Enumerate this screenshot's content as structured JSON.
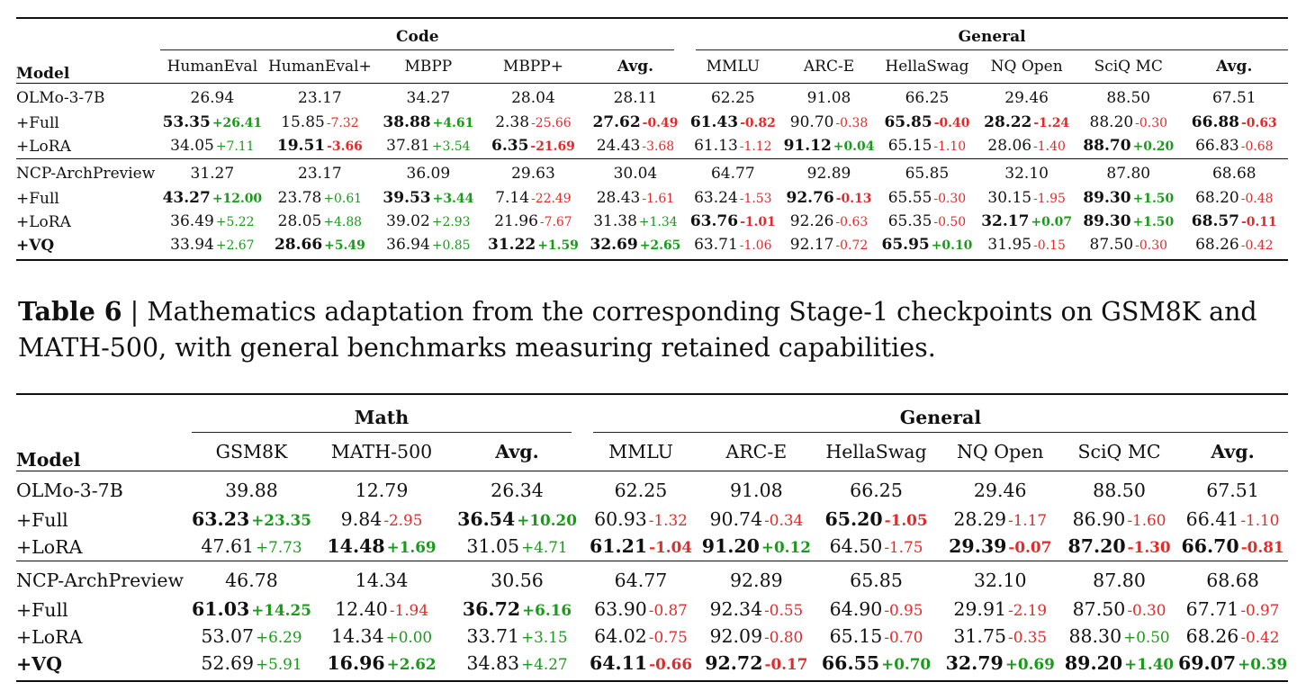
{
  "table_code": {
    "model_header": "Model",
    "groups": [
      {
        "label": "Code",
        "span": 5
      },
      {
        "label": "General",
        "span": 6
      }
    ],
    "columns": [
      "HumanEval",
      "HumanEval+",
      "MBPP",
      "MBPP+",
      "Avg.",
      "MMLU",
      "ARC-E",
      "HellaSwag",
      "NQ Open",
      "SciQ MC",
      "Avg."
    ],
    "blocks": [
      [
        {
          "model": "OLMo-3-7B",
          "bold_model": false,
          "cells": [
            {
              "v": "26.94"
            },
            {
              "v": "23.17"
            },
            {
              "v": "34.27"
            },
            {
              "v": "28.04"
            },
            {
              "v": "28.11"
            },
            {
              "v": "62.25"
            },
            {
              "v": "91.08"
            },
            {
              "v": "66.25"
            },
            {
              "v": "29.46"
            },
            {
              "v": "88.50"
            },
            {
              "v": "67.51"
            }
          ]
        },
        {
          "model": "+Full",
          "bold_model": false,
          "cells": [
            {
              "v": "53.35",
              "d": "+26.41",
              "b": true
            },
            {
              "v": "15.85",
              "d": "-7.32"
            },
            {
              "v": "38.88",
              "d": "+4.61",
              "b": true
            },
            {
              "v": "2.38",
              "d": "-25.66"
            },
            {
              "v": "27.62",
              "d": "-0.49",
              "b": true
            },
            {
              "v": "61.43",
              "d": "-0.82",
              "b": true
            },
            {
              "v": "90.70",
              "d": "-0.38"
            },
            {
              "v": "65.85",
              "d": "-0.40",
              "b": true
            },
            {
              "v": "28.22",
              "d": "-1.24",
              "b": true
            },
            {
              "v": "88.20",
              "d": "-0.30"
            },
            {
              "v": "66.88",
              "d": "-0.63",
              "b": true
            }
          ]
        },
        {
          "model": "+LoRA",
          "bold_model": false,
          "cells": [
            {
              "v": "34.05",
              "d": "+7.11"
            },
            {
              "v": "19.51",
              "d": "-3.66",
              "b": true
            },
            {
              "v": "37.81",
              "d": "+3.54"
            },
            {
              "v": "6.35",
              "d": "-21.69",
              "b": true
            },
            {
              "v": "24.43",
              "d": "-3.68"
            },
            {
              "v": "61.13",
              "d": "-1.12"
            },
            {
              "v": "91.12",
              "d": "+0.04",
              "b": true
            },
            {
              "v": "65.15",
              "d": "-1.10"
            },
            {
              "v": "28.06",
              "d": "-1.40"
            },
            {
              "v": "88.70",
              "d": "+0.20",
              "b": true
            },
            {
              "v": "66.83",
              "d": "-0.68"
            }
          ]
        }
      ],
      [
        {
          "model": "NCP-ArchPreview",
          "bold_model": false,
          "cells": [
            {
              "v": "31.27"
            },
            {
              "v": "23.17"
            },
            {
              "v": "36.09"
            },
            {
              "v": "29.63"
            },
            {
              "v": "30.04"
            },
            {
              "v": "64.77"
            },
            {
              "v": "92.89"
            },
            {
              "v": "65.85"
            },
            {
              "v": "32.10"
            },
            {
              "v": "87.80"
            },
            {
              "v": "68.68"
            }
          ]
        },
        {
          "model": "+Full",
          "bold_model": false,
          "cells": [
            {
              "v": "43.27",
              "d": "+12.00",
              "b": true
            },
            {
              "v": "23.78",
              "d": "+0.61"
            },
            {
              "v": "39.53",
              "d": "+3.44",
              "b": true
            },
            {
              "v": "7.14",
              "d": "-22.49"
            },
            {
              "v": "28.43",
              "d": "-1.61"
            },
            {
              "v": "63.24",
              "d": "-1.53"
            },
            {
              "v": "92.76",
              "d": "-0.13",
              "b": true
            },
            {
              "v": "65.55",
              "d": "-0.30"
            },
            {
              "v": "30.15",
              "d": "-1.95"
            },
            {
              "v": "89.30",
              "d": "+1.50",
              "b": true
            },
            {
              "v": "68.20",
              "d": "-0.48"
            }
          ]
        },
        {
          "model": "+LoRA",
          "bold_model": false,
          "cells": [
            {
              "v": "36.49",
              "d": "+5.22"
            },
            {
              "v": "28.05",
              "d": "+4.88"
            },
            {
              "v": "39.02",
              "d": "+2.93"
            },
            {
              "v": "21.96",
              "d": "-7.67"
            },
            {
              "v": "31.38",
              "d": "+1.34"
            },
            {
              "v": "63.76",
              "d": "-1.01",
              "b": true
            },
            {
              "v": "92.26",
              "d": "-0.63"
            },
            {
              "v": "65.35",
              "d": "-0.50"
            },
            {
              "v": "32.17",
              "d": "+0.07",
              "b": true
            },
            {
              "v": "89.30",
              "d": "+1.50",
              "b": true
            },
            {
              "v": "68.57",
              "d": "-0.11",
              "b": true
            }
          ]
        },
        {
          "model": "+VQ",
          "bold_model": true,
          "cells": [
            {
              "v": "33.94",
              "d": "+2.67"
            },
            {
              "v": "28.66",
              "d": "+5.49",
              "b": true
            },
            {
              "v": "36.94",
              "d": "+0.85"
            },
            {
              "v": "31.22",
              "d": "+1.59",
              "b": true
            },
            {
              "v": "32.69",
              "d": "+2.65",
              "b": true
            },
            {
              "v": "63.71",
              "d": "-1.06"
            },
            {
              "v": "92.17",
              "d": "-0.72"
            },
            {
              "v": "65.95",
              "d": "+0.10",
              "b": true
            },
            {
              "v": "31.95",
              "d": "-0.15"
            },
            {
              "v": "87.50",
              "d": "-0.30"
            },
            {
              "v": "68.26",
              "d": "-0.42"
            }
          ]
        }
      ]
    ]
  },
  "caption": {
    "label": "Table 6",
    "text": " | Mathematics adaptation from the corresponding Stage-1 checkpoints on GSM8K and MATH-500, with general benchmarks measuring retained capabilities."
  },
  "table_math": {
    "model_header": "Model",
    "groups": [
      {
        "label": "Math",
        "span": 3
      },
      {
        "label": "General",
        "span": 6
      }
    ],
    "columns": [
      "GSM8K",
      "MATH-500",
      "Avg.",
      "MMLU",
      "ARC-E",
      "HellaSwag",
      "NQ Open",
      "SciQ MC",
      "Avg."
    ],
    "blocks": [
      [
        {
          "model": "OLMo-3-7B",
          "bold_model": false,
          "cells": [
            {
              "v": "39.88"
            },
            {
              "v": "12.79"
            },
            {
              "v": "26.34"
            },
            {
              "v": "62.25"
            },
            {
              "v": "91.08"
            },
            {
              "v": "66.25"
            },
            {
              "v": "29.46"
            },
            {
              "v": "88.50"
            },
            {
              "v": "67.51"
            }
          ]
        },
        {
          "model": "+Full",
          "bold_model": false,
          "cells": [
            {
              "v": "63.23",
              "d": "+23.35",
              "b": true
            },
            {
              "v": "9.84",
              "d": "-2.95"
            },
            {
              "v": "36.54",
              "d": "+10.20",
              "b": true
            },
            {
              "v": "60.93",
              "d": "-1.32"
            },
            {
              "v": "90.74",
              "d": "-0.34"
            },
            {
              "v": "65.20",
              "d": "-1.05",
              "b": true
            },
            {
              "v": "28.29",
              "d": "-1.17"
            },
            {
              "v": "86.90",
              "d": "-1.60"
            },
            {
              "v": "66.41",
              "d": "-1.10"
            }
          ]
        },
        {
          "model": "+LoRA",
          "bold_model": false,
          "cells": [
            {
              "v": "47.61",
              "d": "+7.73"
            },
            {
              "v": "14.48",
              "d": "+1.69",
              "b": true
            },
            {
              "v": "31.05",
              "d": "+4.71"
            },
            {
              "v": "61.21",
              "d": "-1.04",
              "b": true
            },
            {
              "v": "91.20",
              "d": "+0.12",
              "b": true
            },
            {
              "v": "64.50",
              "d": "-1.75"
            },
            {
              "v": "29.39",
              "d": "-0.07",
              "b": true
            },
            {
              "v": "87.20",
              "d": "-1.30",
              "b": true
            },
            {
              "v": "66.70",
              "d": "-0.81",
              "b": true
            }
          ]
        }
      ],
      [
        {
          "model": "NCP-ArchPreview",
          "bold_model": false,
          "cells": [
            {
              "v": "46.78"
            },
            {
              "v": "14.34"
            },
            {
              "v": "30.56"
            },
            {
              "v": "64.77"
            },
            {
              "v": "92.89"
            },
            {
              "v": "65.85"
            },
            {
              "v": "32.10"
            },
            {
              "v": "87.80"
            },
            {
              "v": "68.68"
            }
          ]
        },
        {
          "model": "+Full",
          "bold_model": false,
          "cells": [
            {
              "v": "61.03",
              "d": "+14.25",
              "b": true
            },
            {
              "v": "12.40",
              "d": "-1.94"
            },
            {
              "v": "36.72",
              "d": "+6.16",
              "b": true
            },
            {
              "v": "63.90",
              "d": "-0.87"
            },
            {
              "v": "92.34",
              "d": "-0.55"
            },
            {
              "v": "64.90",
              "d": "-0.95"
            },
            {
              "v": "29.91",
              "d": "-2.19"
            },
            {
              "v": "87.50",
              "d": "-0.30"
            },
            {
              "v": "67.71",
              "d": "-0.97"
            }
          ]
        },
        {
          "model": "+LoRA",
          "bold_model": false,
          "cells": [
            {
              "v": "53.07",
              "d": "+6.29"
            },
            {
              "v": "14.34",
              "d": "+0.00"
            },
            {
              "v": "33.71",
              "d": "+3.15"
            },
            {
              "v": "64.02",
              "d": "-0.75"
            },
            {
              "v": "92.09",
              "d": "-0.80"
            },
            {
              "v": "65.15",
              "d": "-0.70"
            },
            {
              "v": "31.75",
              "d": "-0.35"
            },
            {
              "v": "88.30",
              "d": "+0.50"
            },
            {
              "v": "68.26",
              "d": "-0.42"
            }
          ]
        },
        {
          "model": "+VQ",
          "bold_model": true,
          "cells": [
            {
              "v": "52.69",
              "d": "+5.91"
            },
            {
              "v": "16.96",
              "d": "+2.62",
              "b": true
            },
            {
              "v": "34.83",
              "d": "+4.27"
            },
            {
              "v": "64.11",
              "d": "-0.66",
              "b": true
            },
            {
              "v": "92.72",
              "d": "-0.17",
              "b": true
            },
            {
              "v": "66.55",
              "d": "+0.70",
              "b": true
            },
            {
              "v": "32.79",
              "d": "+0.69",
              "b": true
            },
            {
              "v": "89.20",
              "d": "+1.40",
              "b": true
            },
            {
              "v": "69.07",
              "d": "+0.39",
              "b": true
            }
          ]
        }
      ]
    ]
  },
  "colors": {
    "positive": "#1a9a1a",
    "negative": "#e02b2b",
    "text": "#111111"
  }
}
